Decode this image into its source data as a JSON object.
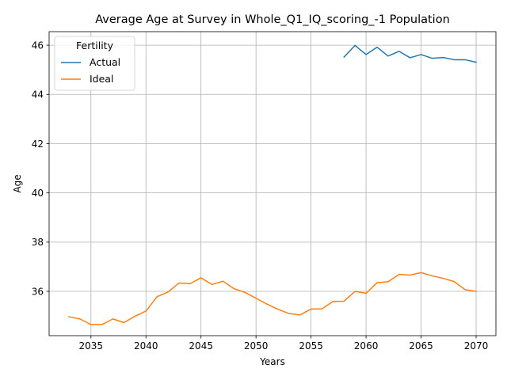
{
  "chart_data": {
    "type": "line",
    "title": "Average Age at Survey in Whole_Q1_IQ_scoring_-1 Population",
    "xlabel": "Years",
    "ylabel": "Age",
    "xlim": [
      2031.2,
      2071.8
    ],
    "ylim": [
      34.2,
      46.55
    ],
    "xticks": [
      2035,
      2040,
      2045,
      2050,
      2055,
      2060,
      2065,
      2070
    ],
    "yticks": [
      36,
      38,
      40,
      42,
      44,
      46
    ],
    "grid": true,
    "legend": {
      "title": "Fertility",
      "position": "top-left"
    },
    "series": [
      {
        "name": "Actual",
        "color": "#1f77b4",
        "x": [
          2058,
          2059,
          2060,
          2061,
          2062,
          2063,
          2064,
          2065,
          2066,
          2067,
          2068,
          2069,
          2070
        ],
        "y": [
          45.52,
          45.99,
          45.62,
          45.92,
          45.56,
          45.75,
          45.49,
          45.62,
          45.47,
          45.5,
          45.41,
          45.41,
          45.31
        ]
      },
      {
        "name": "Ideal",
        "color": "#ff7f0e",
        "x": [
          2033,
          2034,
          2035,
          2036,
          2037,
          2038,
          2039,
          2040,
          2041,
          2042,
          2043,
          2044,
          2045,
          2046,
          2047,
          2048,
          2049,
          2050,
          2051,
          2052,
          2053,
          2054,
          2055,
          2056,
          2057,
          2058,
          2059,
          2060,
          2061,
          2062,
          2063,
          2064,
          2065,
          2066,
          2067,
          2068,
          2069,
          2070
        ],
        "y": [
          34.97,
          34.88,
          34.65,
          34.65,
          34.88,
          34.73,
          34.99,
          35.2,
          35.78,
          35.97,
          36.34,
          36.31,
          36.55,
          36.28,
          36.41,
          36.11,
          35.96,
          35.72,
          35.48,
          35.27,
          35.1,
          35.04,
          35.28,
          35.29,
          35.59,
          35.6,
          36.0,
          35.92,
          36.35,
          36.39,
          36.69,
          36.66,
          36.76,
          36.63,
          36.53,
          36.4,
          36.07,
          36.0
        ]
      }
    ]
  }
}
